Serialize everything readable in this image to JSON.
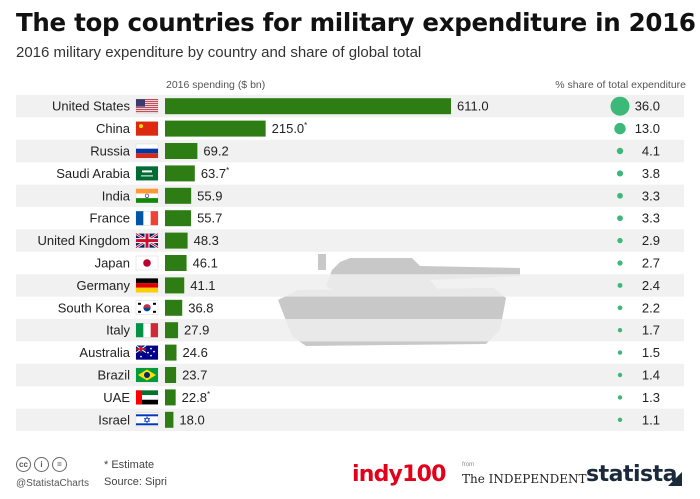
{
  "header": {
    "title": "The top countries for military expenditure in 2016",
    "subtitle": "2016 military expenditure by country and share of global total",
    "spend_column_label": "2016 spending ($ bn)",
    "share_column_label": "% share of total expenditure"
  },
  "chart_data": {
    "type": "bar",
    "categories": [
      "United States",
      "China",
      "Russia",
      "Saudi Arabia",
      "India",
      "France",
      "United Kingdom",
      "Japan",
      "Germany",
      "South Korea",
      "Italy",
      "Australia",
      "Brazil",
      "UAE",
      "Israel"
    ],
    "values": [
      611.0,
      215.0,
      69.2,
      63.7,
      55.9,
      55.7,
      48.3,
      46.1,
      41.1,
      36.8,
      27.9,
      24.6,
      23.7,
      22.8,
      18.0
    ],
    "value_labels": [
      "611.0",
      "215.0",
      "69.2",
      "63.7",
      "55.9",
      "55.7",
      "48.3",
      "46.1",
      "41.1",
      "36.8",
      "27.9",
      "24.6",
      "23.7",
      "22.8",
      "18.0"
    ],
    "estimate": [
      false,
      true,
      false,
      true,
      false,
      false,
      false,
      false,
      false,
      false,
      false,
      false,
      false,
      true,
      false
    ],
    "estimate_mark": "*",
    "share_values": [
      36.0,
      13.0,
      4.1,
      3.8,
      3.3,
      3.3,
      2.9,
      2.7,
      2.4,
      2.2,
      1.7,
      1.5,
      1.4,
      1.3,
      1.1
    ],
    "share_labels": [
      "36.0",
      "13.0",
      "4.1",
      "3.8",
      "3.3",
      "3.3",
      "2.9",
      "2.7",
      "2.4",
      "2.2",
      "1.7",
      "1.5",
      "1.4",
      "1.3",
      "1.1"
    ],
    "flags": [
      "us-flag-icon",
      "china-flag-icon",
      "russia-flag-icon",
      "saudi-arabia-flag-icon",
      "india-flag-icon",
      "france-flag-icon",
      "uk-flag-icon",
      "japan-flag-icon",
      "germany-flag-icon",
      "south-korea-flag-icon",
      "italy-flag-icon",
      "australia-flag-icon",
      "brazil-flag-icon",
      "uae-flag-icon",
      "israel-flag-icon"
    ],
    "grid": false,
    "colors": {
      "bar": "#2e7d14",
      "dot": "#3cb878",
      "row_band": "#eeeeee",
      "tank": "#c8c8c8"
    }
  },
  "footer": {
    "license_icons": [
      "cc",
      "i",
      "="
    ],
    "handle": "@StatistaCharts",
    "note": "* Estimate",
    "source": "Source: Sipri"
  },
  "logos": {
    "indy100": "indy100",
    "from": "from",
    "independent": "The INDEPENDENT",
    "statista": "statista"
  }
}
